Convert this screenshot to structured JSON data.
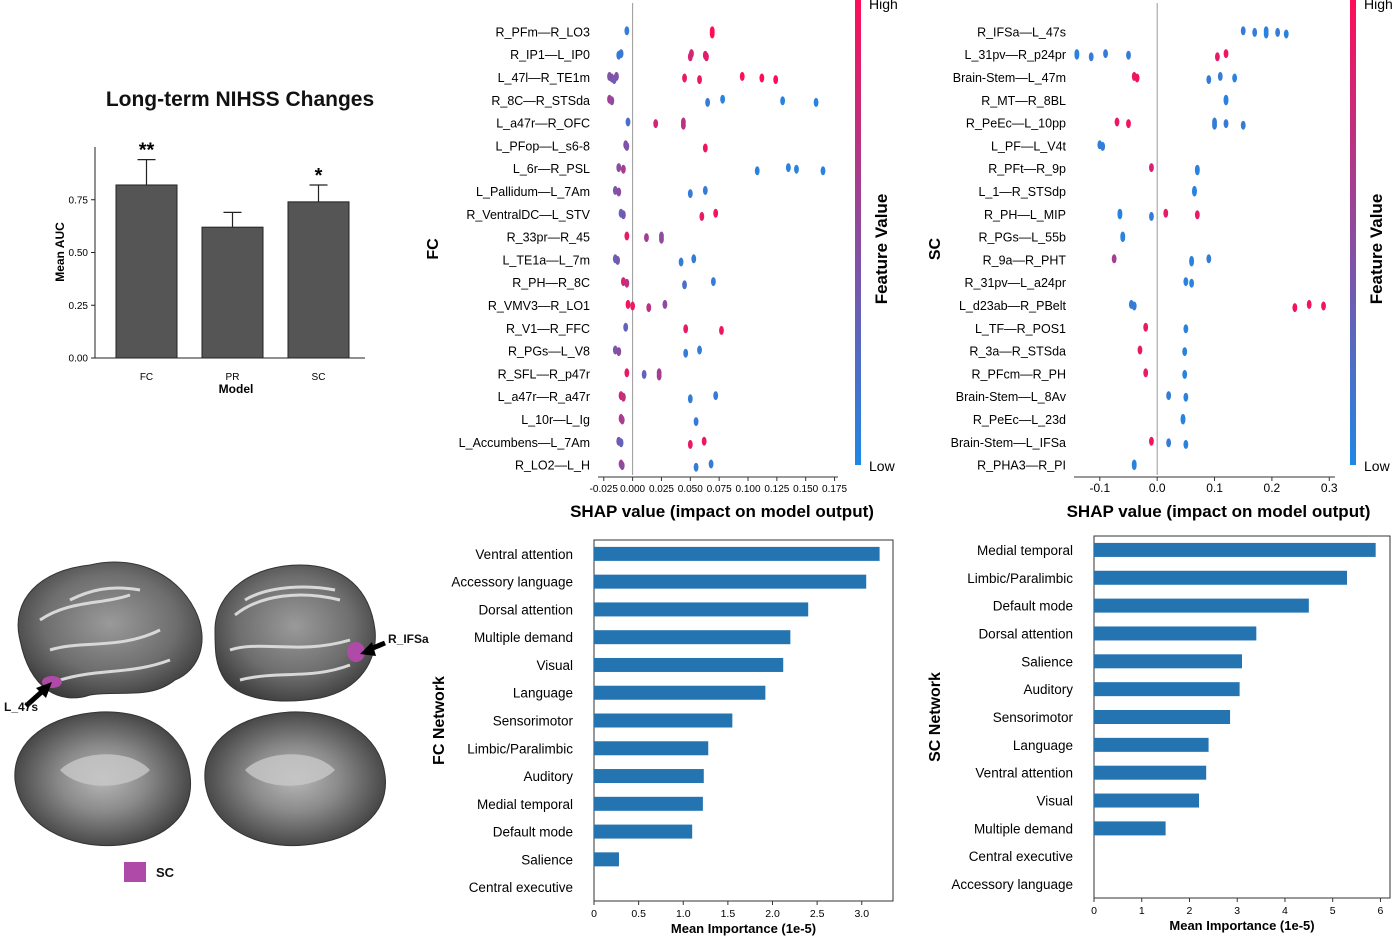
{
  "auc_chart": {
    "title": "Long-term NIHSS Changes",
    "xlabel": "Model",
    "ylabel": "Mean AUC",
    "categories": [
      "FC",
      "PR",
      "SC"
    ],
    "values": [
      0.82,
      0.62,
      0.74
    ],
    "errors": [
      0.12,
      0.07,
      0.08
    ],
    "significance": [
      "**",
      "",
      "*"
    ],
    "ylim": [
      0,
      1
    ],
    "yticks": [
      "0.00",
      "0.25",
      "0.50",
      "0.75"
    ],
    "bar_color": "#555555"
  },
  "brain_panel": {
    "labels": [
      "L_47s",
      "R_IFSa"
    ],
    "legend_label": "SC",
    "highlight_color": "#b04aa8"
  },
  "chart_data": [
    {
      "type": "scatter",
      "panel": "fc_shap",
      "ylabel": "FC",
      "xlabel": "SHAP value (impact on model output)",
      "colorbar_label": "Feature Value",
      "colorbar_high": "High",
      "colorbar_low": "Low",
      "xlim": [
        -0.03,
        0.178
      ],
      "xticks": [
        "-0.025",
        "0.000",
        "0.025",
        "0.050",
        "0.075",
        "0.100",
        "0.125",
        "0.150",
        "0.175"
      ],
      "tick_values": [
        -0.025,
        0.0,
        0.025,
        0.05,
        0.075,
        0.1,
        0.125,
        0.15,
        0.175
      ],
      "features": [
        {
          "name": "R_PFm—R_LO3",
          "points": [
            [
              -0.005,
              0.1
            ],
            [
              0.069,
              1
            ],
            [
              0.069,
              1
            ],
            [
              0.069,
              1
            ]
          ]
        },
        {
          "name": "R_IP1—L_IP0",
          "points": [
            [
              -0.01,
              0.15
            ],
            [
              -0.012,
              0.1
            ],
            [
              0.05,
              0.8
            ],
            [
              0.051,
              0.8
            ],
            [
              0.063,
              0.9
            ],
            [
              0.064,
              0.85
            ]
          ]
        },
        {
          "name": "L_47l—R_TE1m",
          "points": [
            [
              -0.02,
              0.4
            ],
            [
              -0.018,
              0.5
            ],
            [
              -0.016,
              0.3
            ],
            [
              -0.014,
              0.45
            ],
            [
              0.045,
              0.9
            ],
            [
              0.058,
              0.9
            ],
            [
              0.095,
              1
            ],
            [
              0.112,
              1
            ],
            [
              0.124,
              1
            ]
          ]
        },
        {
          "name": "R_8C—R_STSda",
          "points": [
            [
              -0.02,
              0.6
            ],
            [
              -0.018,
              0.5
            ],
            [
              0.065,
              0.1
            ],
            [
              0.078,
              0.05
            ],
            [
              0.13,
              0.05
            ],
            [
              0.159,
              0.05
            ]
          ]
        },
        {
          "name": "L_a47r—R_OFC",
          "points": [
            [
              -0.004,
              0.2
            ],
            [
              0.02,
              0.8
            ],
            [
              0.044,
              0.7
            ],
            [
              0.044,
              0.7
            ]
          ]
        },
        {
          "name": "L_PFop—L_s6-8",
          "points": [
            [
              -0.006,
              0.5
            ],
            [
              -0.005,
              0.4
            ],
            [
              0.063,
              0.95
            ]
          ]
        },
        {
          "name": "L_6r—R_PSL",
          "points": [
            [
              -0.012,
              0.5
            ],
            [
              -0.008,
              0.6
            ],
            [
              0.108,
              0.05
            ],
            [
              0.135,
              0.05
            ],
            [
              0.142,
              0.05
            ],
            [
              0.165,
              0.05
            ]
          ]
        },
        {
          "name": "L_Pallidum—L_7Am",
          "points": [
            [
              -0.015,
              0.4
            ],
            [
              -0.012,
              0.5
            ],
            [
              0.05,
              0.1
            ],
            [
              0.063,
              0.1
            ]
          ]
        },
        {
          "name": "R_VentralDC—L_STV",
          "points": [
            [
              -0.01,
              0.3
            ],
            [
              -0.008,
              0.4
            ],
            [
              0.06,
              0.9
            ],
            [
              0.072,
              0.95
            ]
          ]
        },
        {
          "name": "R_33pr—R_45",
          "points": [
            [
              -0.005,
              0.9
            ],
            [
              0.012,
              0.6
            ],
            [
              0.025,
              0.5
            ],
            [
              0.025,
              0.5
            ]
          ]
        },
        {
          "name": "L_TE1a—L_7m",
          "points": [
            [
              -0.015,
              0.3
            ],
            [
              -0.013,
              0.4
            ],
            [
              0.042,
              0.1
            ],
            [
              0.053,
              0.1
            ]
          ]
        },
        {
          "name": "R_PH—R_8C",
          "points": [
            [
              -0.008,
              0.8
            ],
            [
              -0.005,
              0.7
            ],
            [
              0.045,
              0.2
            ],
            [
              0.07,
              0.1
            ]
          ]
        },
        {
          "name": "R_VMV3—R_LO1",
          "points": [
            [
              -0.004,
              0.95
            ],
            [
              0.0,
              0.9
            ],
            [
              0.014,
              0.7
            ],
            [
              0.028,
              0.5
            ]
          ]
        },
        {
          "name": "R_V1—R_FFC",
          "points": [
            [
              -0.006,
              0.3
            ],
            [
              0.046,
              0.9
            ],
            [
              0.077,
              0.95
            ]
          ]
        },
        {
          "name": "R_PGs—L_V8",
          "points": [
            [
              -0.015,
              0.4
            ],
            [
              -0.012,
              0.5
            ],
            [
              0.046,
              0.1
            ],
            [
              0.058,
              0.1
            ]
          ]
        },
        {
          "name": "R_SFL—R_p47r",
          "points": [
            [
              -0.005,
              0.9
            ],
            [
              0.01,
              0.3
            ],
            [
              0.023,
              0.6
            ],
            [
              0.023,
              0.6
            ]
          ]
        },
        {
          "name": "L_a47r—R_a47r",
          "points": [
            [
              -0.01,
              0.8
            ],
            [
              -0.008,
              0.7
            ],
            [
              0.05,
              0.1
            ],
            [
              0.072,
              0.1
            ]
          ]
        },
        {
          "name": "L_10r—L_Ig",
          "points": [
            [
              -0.01,
              0.7
            ],
            [
              -0.009,
              0.6
            ],
            [
              0.055,
              0.1
            ]
          ]
        },
        {
          "name": "L_Accumbens—L_7Am",
          "points": [
            [
              -0.012,
              0.4
            ],
            [
              -0.01,
              0.3
            ],
            [
              0.05,
              0.9
            ],
            [
              0.062,
              0.9
            ]
          ]
        },
        {
          "name": "R_LO2—L_H",
          "points": [
            [
              -0.01,
              0.6
            ],
            [
              -0.009,
              0.5
            ],
            [
              0.055,
              0.1
            ],
            [
              0.068,
              0.1
            ]
          ]
        }
      ]
    },
    {
      "type": "scatter",
      "panel": "sc_shap",
      "ylabel": "SC",
      "xlabel": "SHAP value (impact on model output)",
      "colorbar_label": "Feature Value",
      "colorbar_high": "High",
      "colorbar_low": "Low",
      "xlim": [
        -0.145,
        0.31
      ],
      "xticks": [
        "-0.1",
        "0.0",
        "0.1",
        "0.2",
        "0.3"
      ],
      "tick_values": [
        -0.1,
        0.0,
        0.1,
        0.2,
        0.3
      ],
      "features": [
        {
          "name": "R_IFSa—L_47s",
          "points": [
            [
              0.15,
              0.1
            ],
            [
              0.17,
              0.1
            ],
            [
              0.19,
              0.05
            ],
            [
              0.19,
              0.05
            ],
            [
              0.21,
              0.1
            ],
            [
              0.225,
              0.05
            ]
          ]
        },
        {
          "name": "L_31pv—R_p24pr",
          "points": [
            [
              -0.14,
              0.05
            ],
            [
              -0.14,
              0.05
            ],
            [
              -0.115,
              0.1
            ],
            [
              -0.09,
              0.1
            ],
            [
              -0.05,
              0.1
            ],
            [
              0.105,
              0.9
            ],
            [
              0.12,
              0.95
            ]
          ]
        },
        {
          "name": "Brain-Stem—L_47m",
          "points": [
            [
              -0.04,
              0.9
            ],
            [
              -0.035,
              0.95
            ],
            [
              0.09,
              0.1
            ],
            [
              0.11,
              0.1
            ],
            [
              0.135,
              0.05
            ]
          ]
        },
        {
          "name": "R_MT—R_8BL",
          "points": [
            [
              0.12,
              0.05
            ],
            [
              0.12,
              0.05
            ]
          ]
        },
        {
          "name": "R_PeEc—L_10pp",
          "points": [
            [
              -0.07,
              0.9
            ],
            [
              -0.05,
              0.95
            ],
            [
              0.1,
              0.1
            ],
            [
              0.1,
              0.1
            ],
            [
              0.12,
              0.1
            ],
            [
              0.15,
              0.1
            ]
          ]
        },
        {
          "name": "L_PF—L_V4t",
          "points": [
            [
              -0.1,
              0.05
            ],
            [
              -0.095,
              0.1
            ]
          ]
        },
        {
          "name": "R_PFt—R_9p",
          "points": [
            [
              -0.01,
              0.8
            ],
            [
              0.07,
              0.05
            ],
            [
              0.07,
              0.05
            ]
          ]
        },
        {
          "name": "L_1—R_STSdp",
          "points": [
            [
              0.065,
              0.05
            ],
            [
              0.065,
              0.05
            ]
          ]
        },
        {
          "name": "R_PH—L_MIP",
          "points": [
            [
              -0.065,
              0.05
            ],
            [
              -0.065,
              0.05
            ],
            [
              -0.01,
              0.1
            ],
            [
              0.015,
              0.9
            ],
            [
              0.07,
              0.9
            ]
          ]
        },
        {
          "name": "R_PGs—L_55b",
          "points": [
            [
              -0.06,
              0.05
            ],
            [
              -0.06,
              0.05
            ]
          ]
        },
        {
          "name": "R_9a—R_PHT",
          "points": [
            [
              -0.075,
              0.6
            ],
            [
              0.06,
              0.05
            ],
            [
              0.06,
              0.05
            ],
            [
              0.09,
              0.1
            ]
          ]
        },
        {
          "name": "R_31pv—L_a24pr",
          "points": [
            [
              0.05,
              0.05
            ],
            [
              0.06,
              0.05
            ]
          ]
        },
        {
          "name": "L_d23ab—R_PBelt",
          "points": [
            [
              -0.045,
              0.1
            ],
            [
              -0.04,
              0.1
            ],
            [
              0.24,
              0.95
            ],
            [
              0.265,
              0.95
            ],
            [
              0.29,
              0.95
            ]
          ]
        },
        {
          "name": "L_TF—R_POS1",
          "points": [
            [
              -0.02,
              0.9
            ],
            [
              0.05,
              0.05
            ]
          ]
        },
        {
          "name": "R_3a—R_STSda",
          "points": [
            [
              -0.03,
              0.9
            ],
            [
              0.048,
              0.05
            ]
          ]
        },
        {
          "name": "R_PFcm—R_PH",
          "points": [
            [
              -0.02,
              0.9
            ],
            [
              0.048,
              0.05
            ]
          ]
        },
        {
          "name": "Brain-Stem—L_8Av",
          "points": [
            [
              0.02,
              0.1
            ],
            [
              0.05,
              0.05
            ]
          ]
        },
        {
          "name": "R_PeEc—L_23d",
          "points": [
            [
              0.045,
              0.05
            ],
            [
              0.045,
              0.05
            ]
          ]
        },
        {
          "name": "Brain-Stem—L_IFSa",
          "points": [
            [
              -0.01,
              0.95
            ],
            [
              0.02,
              0.1
            ],
            [
              0.05,
              0.05
            ]
          ]
        },
        {
          "name": "R_PHA3—R_PI",
          "points": [
            [
              -0.04,
              0.05
            ],
            [
              -0.04,
              0.05
            ]
          ]
        }
      ]
    },
    {
      "type": "bar",
      "panel": "fc_network",
      "orientation": "horizontal",
      "ylabel": "FC Network",
      "xlabel": "Mean Importance (1e-5)",
      "xlim": [
        0,
        3.35
      ],
      "xticks": [
        "0",
        "0.5",
        "1.0",
        "1.5",
        "2.0",
        "2.5",
        "3.0"
      ],
      "tick_values": [
        0,
        0.5,
        1.0,
        1.5,
        2.0,
        2.5,
        3.0
      ],
      "bar_color": "#2474b2",
      "categories": [
        "Ventral attention",
        "Accessory language",
        "Dorsal attention",
        "Multiple demand",
        "Visual",
        "Language",
        "Sensorimotor",
        "Limbic/Paralimbic",
        "Auditory",
        "Medial temporal",
        "Default mode",
        "Salience",
        "Central executive"
      ],
      "values": [
        3.2,
        3.05,
        2.4,
        2.2,
        2.12,
        1.92,
        1.55,
        1.28,
        1.23,
        1.22,
        1.1,
        0.28,
        0.0
      ]
    },
    {
      "type": "bar",
      "panel": "sc_network",
      "orientation": "horizontal",
      "ylabel": "SC Network",
      "xlabel": "Mean Importance (1e-5)",
      "xlim": [
        0,
        6.2
      ],
      "xticks": [
        "0",
        "1",
        "2",
        "3",
        "4",
        "5",
        "6"
      ],
      "tick_values": [
        0,
        1,
        2,
        3,
        4,
        5,
        6
      ],
      "bar_color": "#2474b2",
      "categories": [
        "Medial temporal",
        "Limbic/Paralimbic",
        "Default mode",
        "Dorsal attention",
        "Salience",
        "Auditory",
        "Sensorimotor",
        "Language",
        "Ventral attention",
        "Visual",
        "Multiple demand",
        "Central executive",
        "Accessory language"
      ],
      "values": [
        5.9,
        5.3,
        4.5,
        3.4,
        3.1,
        3.05,
        2.85,
        2.4,
        2.35,
        2.2,
        1.5,
        0.0,
        0.0
      ]
    }
  ]
}
